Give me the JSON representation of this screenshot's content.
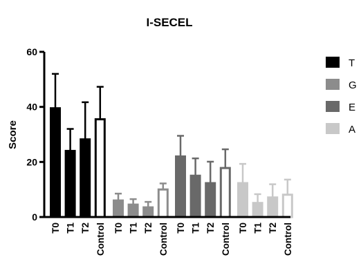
{
  "chart_data": {
    "type": "bar",
    "title": "I-SECEL",
    "xlabel": "",
    "ylabel": "Score",
    "ylim": [
      0,
      60
    ],
    "yticks": [
      0,
      20,
      40,
      60
    ],
    "grid": false,
    "legend_position": "right",
    "categories": [
      "T0",
      "T1",
      "T2",
      "Control"
    ],
    "series": [
      {
        "name": "T",
        "color": "#000000",
        "values": [
          39.5,
          24,
          28.2,
          35.5
        ],
        "errors": [
          12.5,
          8,
          13.5,
          11.8
        ]
      },
      {
        "name": "G",
        "color": "#8c8c8c",
        "values": [
          6,
          4.5,
          3.5,
          10
        ],
        "errors": [
          2.5,
          2,
          2,
          2.2
        ]
      },
      {
        "name": "E",
        "color": "#696969",
        "values": [
          22,
          15,
          12.3,
          17.8
        ],
        "errors": [
          7.5,
          6.3,
          7.8,
          6.8
        ]
      },
      {
        "name": "A",
        "color": "#c8c8c8",
        "values": [
          12.3,
          5.1,
          7.1,
          8.1
        ],
        "errors": [
          7,
          3.2,
          4.8,
          5.5
        ]
      }
    ],
    "control_fill": "#ffffff"
  }
}
